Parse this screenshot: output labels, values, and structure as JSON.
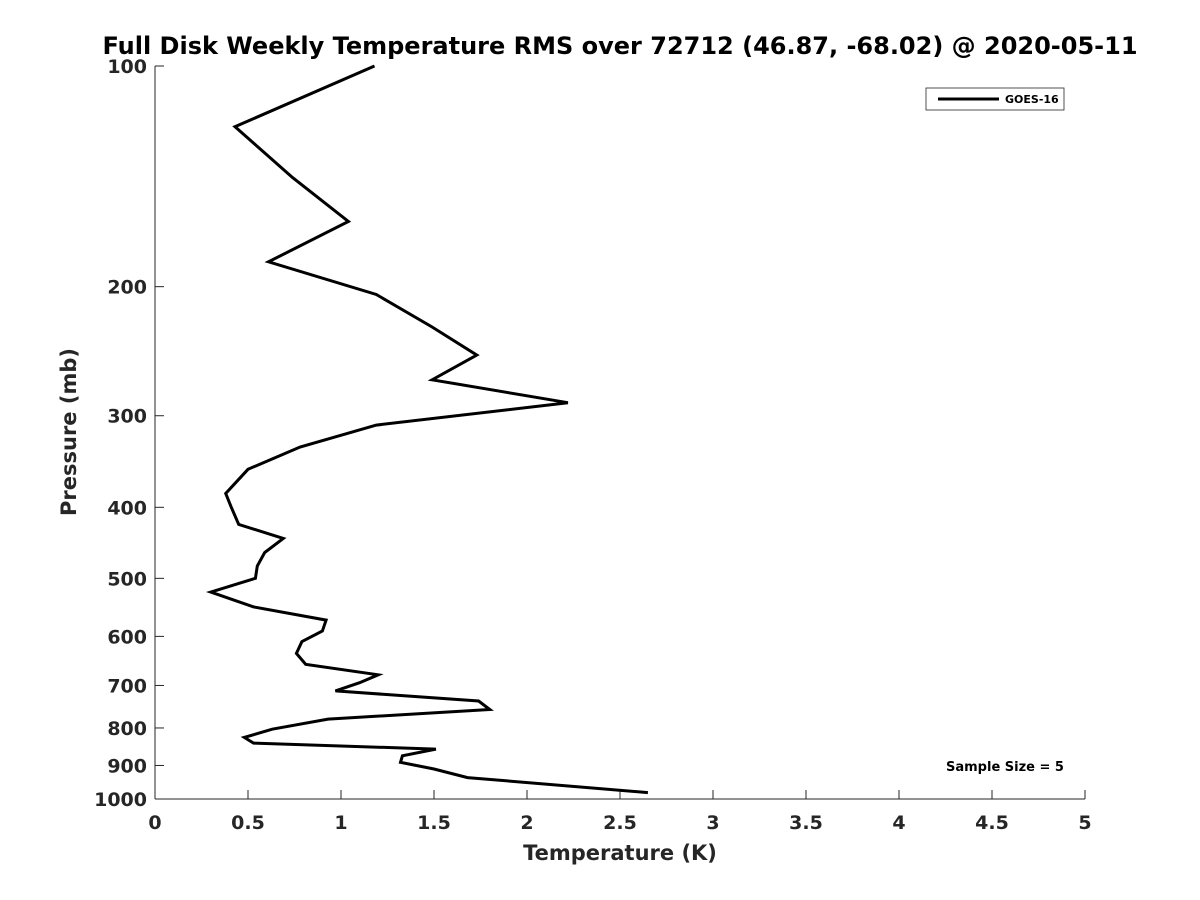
{
  "chart_data": {
    "type": "line",
    "title": "Full Disk Weekly Temperature RMS over 72712 (46.87, -68.02) @ 2020-05-11",
    "xlabel": "Temperature (K)",
    "ylabel": "Pressure (mb)",
    "xlim": [
      0,
      5
    ],
    "ylim": [
      100,
      1000
    ],
    "y_scale": "log",
    "y_reversed": true,
    "x_ticks": [
      "0",
      "0.5",
      "1",
      "1.5",
      "2",
      "2.5",
      "3",
      "3.5",
      "4",
      "4.5",
      "5"
    ],
    "y_ticks": [
      "100",
      "200",
      "300",
      "400",
      "500",
      "600",
      "700",
      "800",
      "900",
      "1000"
    ],
    "grid": false,
    "legend_position": "top-right",
    "annotation": "Sample Size = 5",
    "series": [
      {
        "name": "GOES-16",
        "color": "#000000",
        "x": [
          1.18,
          0.43,
          0.74,
          1.04,
          0.61,
          1.19,
          1.49,
          1.73,
          1.49,
          2.22,
          1.19,
          0.78,
          0.5,
          0.38,
          0.41,
          0.45,
          0.69,
          0.59,
          0.55,
          0.54,
          0.3,
          0.53,
          0.92,
          0.9,
          0.79,
          0.76,
          0.81,
          1.2,
          1.1,
          0.97,
          1.74,
          1.8,
          0.93,
          0.63,
          0.48,
          0.53,
          1.51,
          1.33,
          1.32,
          1.5,
          1.68,
          2.65
        ],
        "y": [
          100,
          121,
          142,
          163,
          185,
          205,
          227,
          248,
          268,
          288,
          309,
          331,
          355,
          383,
          400,
          422,
          441,
          461,
          481,
          500,
          522,
          547,
          570,
          590,
          610,
          633,
          655,
          677,
          694,
          712,
          735,
          755,
          778,
          803,
          824,
          839,
          855,
          873,
          891,
          910,
          935,
          980
        ]
      }
    ]
  }
}
